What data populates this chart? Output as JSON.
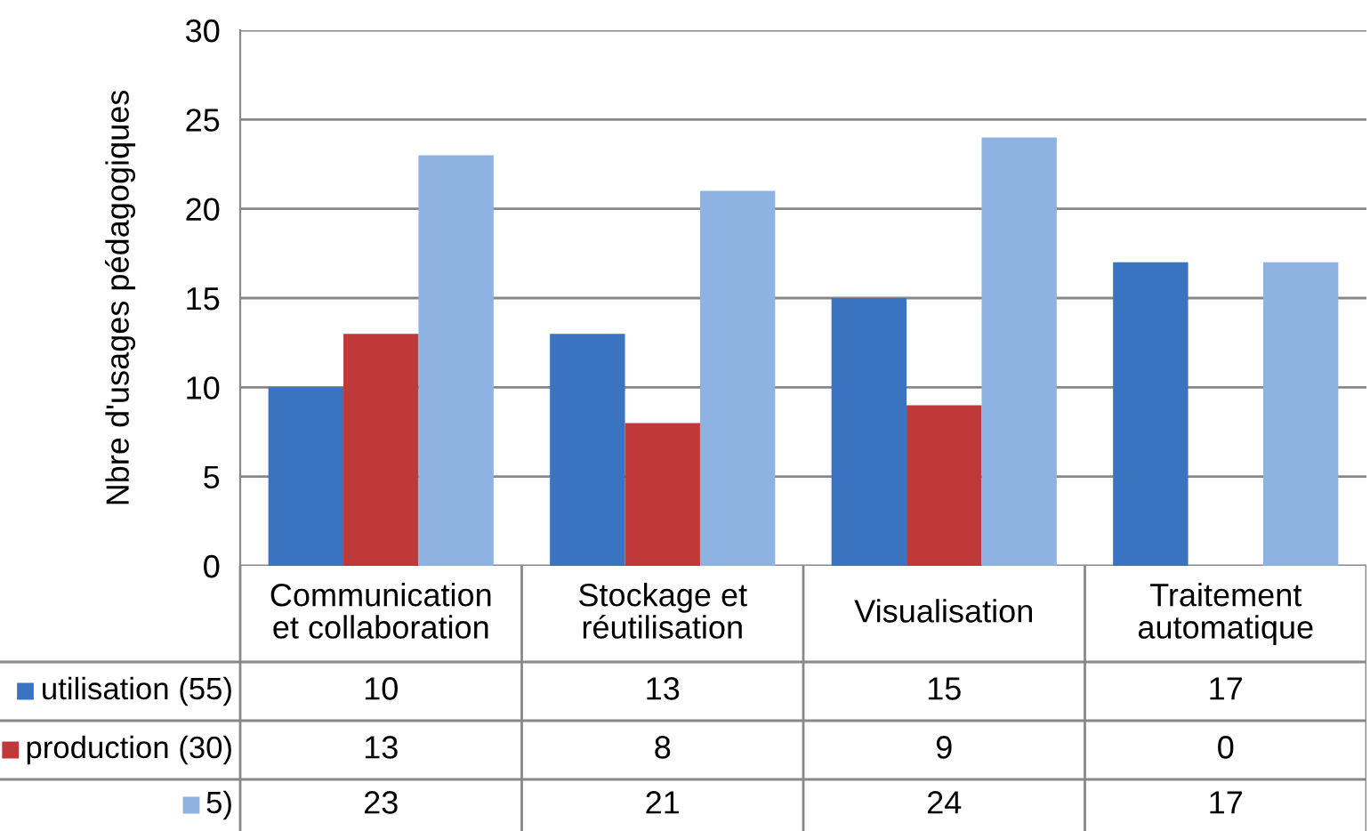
{
  "chart_data": {
    "type": "bar",
    "ylabel": "Nbre d'usages pédagogiques",
    "categories": [
      "Communication\net collaboration",
      "Stockage et\nréutilisation",
      "Visualisation",
      "Traitement\nautomatique"
    ],
    "series": [
      {
        "name": "utilisation (55)",
        "color": "#3a74c0",
        "values": [
          10,
          13,
          15,
          17
        ]
      },
      {
        "name": "production (30)",
        "color": "#c0393a",
        "values": [
          13,
          8,
          9,
          0
        ]
      },
      {
        "name": "5)",
        "color": "#8eb3e2",
        "values": [
          23,
          21,
          24,
          17
        ]
      }
    ],
    "ylim": [
      0,
      30
    ],
    "yticks": [
      0,
      5,
      10,
      15,
      20,
      25,
      30
    ],
    "grid": "y",
    "data_labels": true,
    "legend": "bottom"
  }
}
